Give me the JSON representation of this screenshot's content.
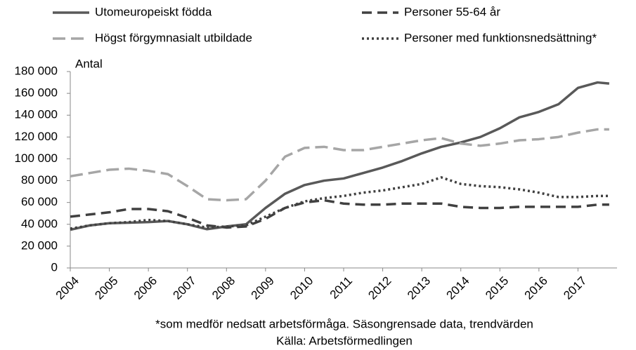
{
  "chart_data": {
    "type": "line",
    "y_label": "Antal",
    "note": "*som medför nedsatt arbetsförmåga. Säsongrensade data, trendvärden",
    "source": "Källa: Arbetsförmedlingen",
    "x": [
      2004,
      2004.5,
      2005,
      2005.5,
      2006,
      2006.5,
      2007,
      2007.5,
      2008,
      2008.5,
      2009,
      2009.5,
      2010,
      2010.5,
      2011,
      2011.5,
      2012,
      2012.5,
      2013,
      2013.5,
      2014,
      2014.5,
      2015,
      2015.5,
      2016,
      2016.5,
      2017,
      2017.5,
      2017.8
    ],
    "xlim": [
      2004,
      2018
    ],
    "xticks": [
      2004,
      2005,
      2006,
      2007,
      2008,
      2009,
      2010,
      2011,
      2012,
      2013,
      2014,
      2015,
      2016,
      2017
    ],
    "ylim": [
      0,
      180000
    ],
    "yticks": [
      0,
      {
        "value": 20000,
        "label": "20 000"
      },
      {
        "value": 40000,
        "label": "40 000"
      },
      {
        "value": 60000,
        "label": "60 000"
      },
      {
        "value": 80000,
        "label": "80 000"
      },
      {
        "value": 100000,
        "label": "100 000"
      },
      {
        "value": 120000,
        "label": "120 000"
      },
      {
        "value": 140000,
        "label": "140 000"
      },
      {
        "value": 160000,
        "label": "160 000"
      },
      {
        "value": 180000,
        "label": "180 000"
      }
    ],
    "series": [
      {
        "name": "Utomeuropeiskt födda",
        "color": "#595959",
        "dash": "none",
        "values": [
          35000,
          39000,
          41000,
          41500,
          42000,
          43000,
          40000,
          35500,
          38000,
          40000,
          55000,
          68000,
          76000,
          80000,
          82000,
          87000,
          92000,
          98000,
          105000,
          111000,
          115000,
          120000,
          128000,
          138000,
          143000,
          150000,
          165000,
          170000,
          169000
        ]
      },
      {
        "name": "Personer 55-64 år",
        "color": "#404040",
        "dash": "14,8",
        "values": [
          47000,
          49000,
          51000,
          54000,
          54000,
          52000,
          46000,
          39000,
          37000,
          38000,
          45000,
          55000,
          60000,
          62000,
          59000,
          58000,
          58000,
          59000,
          59000,
          59000,
          56000,
          55000,
          55000,
          56000,
          56000,
          56000,
          56000,
          58000,
          58000
        ]
      },
      {
        "name": "Högst förgymnasialt utbildade",
        "color": "#a6a6a6",
        "dash": "18,8",
        "values": [
          84000,
          87000,
          90000,
          91000,
          89000,
          86000,
          75000,
          63000,
          62000,
          63000,
          80000,
          102000,
          110000,
          111000,
          108000,
          108000,
          111000,
          114000,
          117000,
          119000,
          114000,
          112000,
          114000,
          117000,
          118000,
          120000,
          124000,
          127000,
          127000
        ]
      },
      {
        "name": "Personer med funktionsnedsättning*",
        "color": "#404040",
        "dash": "3,4",
        "values": [
          36000,
          39000,
          41000,
          42000,
          44000,
          43000,
          40000,
          37000,
          38000,
          39000,
          47000,
          55000,
          61000,
          64000,
          66000,
          69000,
          71000,
          74000,
          77000,
          83000,
          77000,
          75000,
          74000,
          72000,
          69000,
          65000,
          65000,
          66000,
          66000
        ]
      }
    ]
  }
}
